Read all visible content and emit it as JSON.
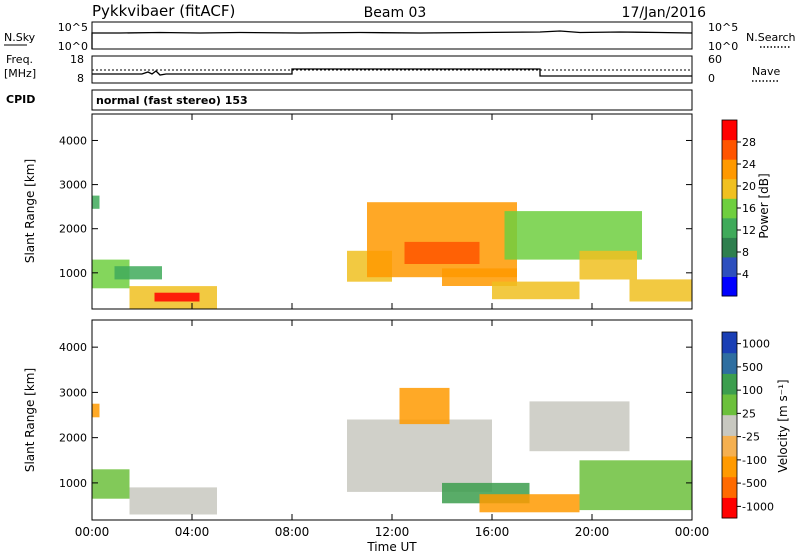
{
  "header": {
    "station": "Pykkvibaer (fitACF)",
    "beam": "Beam 03",
    "date": "17/Jan/2016"
  },
  "noise_panel": {
    "left_label": "N.Sky",
    "right_label": "N.Search",
    "left_ticks": [
      "10^5",
      "10^0"
    ],
    "right_ticks": [
      "10^5",
      "10^0"
    ],
    "right_legend_line": "dotted"
  },
  "freq_panel": {
    "left_label_1": "Freq.",
    "left_label_2": "[MHz]",
    "right_label": "Nave",
    "left_ticks": [
      "18",
      "8"
    ],
    "right_ticks": [
      "60",
      "0"
    ],
    "right_legend_line": "dotted"
  },
  "cpid": {
    "label": "CPID",
    "text": "normal (fast stereo) 153"
  },
  "colors": {
    "power_scale": [
      "#0000ff",
      "#2d4fbe",
      "#2e7f4e",
      "#3faa5a",
      "#6fcf3f",
      "#f0c020",
      "#ff9900",
      "#ff5500",
      "#ff0000"
    ],
    "velocity_scale": [
      "#ff0000",
      "#ff6a00",
      "#ff9a00",
      "#f5b050",
      "#c8c8c0",
      "#6cc03c",
      "#3c9e4e",
      "#2e6ea0",
      "#1a3fb5"
    ]
  },
  "chart_data": [
    {
      "type": "heatmap",
      "panel": "power",
      "ylabel": "Slant Range [km]",
      "ylim": [
        180,
        4600
      ],
      "y_ticks": [
        "1000",
        "2000",
        "3000",
        "4000"
      ],
      "x_ticks": [
        "00:00",
        "04:00",
        "08:00",
        "12:00",
        "16:00",
        "20:00",
        "00:00"
      ],
      "colorbar": {
        "label": "Power [dB]",
        "ticks": [
          "4",
          "8",
          "12",
          "16",
          "20",
          "24",
          "28"
        ]
      },
      "regions": [
        {
          "t0": 0.0,
          "t1": 1.5,
          "r0": 650,
          "r1": 1300,
          "level": 4
        },
        {
          "t0": 0.9,
          "t1": 2.8,
          "r0": 850,
          "r1": 1150,
          "level": 3
        },
        {
          "t0": 1.5,
          "t1": 5.0,
          "r0": 180,
          "r1": 700,
          "level": 5
        },
        {
          "t0": 2.5,
          "t1": 4.3,
          "r0": 350,
          "r1": 550,
          "level": 8
        },
        {
          "t0": 0.0,
          "t1": 0.3,
          "r0": 2450,
          "r1": 2750,
          "level": 3
        },
        {
          "t0": 10.2,
          "t1": 12.0,
          "r0": 800,
          "r1": 1500,
          "level": 5
        },
        {
          "t0": 11.0,
          "t1": 17.0,
          "r0": 900,
          "r1": 2600,
          "level": 6
        },
        {
          "t0": 12.5,
          "t1": 15.5,
          "r0": 1200,
          "r1": 1700,
          "level": 7
        },
        {
          "t0": 14.0,
          "t1": 17.0,
          "r0": 700,
          "r1": 1100,
          "level": 6
        },
        {
          "t0": 16.0,
          "t1": 19.5,
          "r0": 400,
          "r1": 800,
          "level": 5
        },
        {
          "t0": 16.5,
          "t1": 22.0,
          "r0": 1300,
          "r1": 2400,
          "level": 4
        },
        {
          "t0": 19.5,
          "t1": 21.8,
          "r0": 850,
          "r1": 1500,
          "level": 5
        },
        {
          "t0": 21.5,
          "t1": 24.0,
          "r0": 350,
          "r1": 850,
          "level": 5
        }
      ]
    },
    {
      "type": "heatmap",
      "panel": "velocity",
      "ylabel": "Slant Range [km]",
      "ylim": [
        180,
        4600
      ],
      "y_ticks": [
        "1000",
        "2000",
        "3000",
        "4000"
      ],
      "x_ticks": [
        "00:00",
        "04:00",
        "08:00",
        "12:00",
        "16:00",
        "20:00",
        "00:00"
      ],
      "xlabel": "Time UT",
      "colorbar": {
        "label": "Velocity [m s⁻¹]",
        "ticks": [
          "1000",
          "500",
          "100",
          "25",
          "-25",
          "-100",
          "-500",
          "-1000"
        ]
      },
      "regions": [
        {
          "t0": 0.0,
          "t1": 1.5,
          "r0": 650,
          "r1": 1300,
          "level": 5
        },
        {
          "t0": 1.5,
          "t1": 5.0,
          "r0": 300,
          "r1": 900,
          "level": 4
        },
        {
          "t0": 0.0,
          "t1": 0.3,
          "r0": 2450,
          "r1": 2750,
          "level": 2
        },
        {
          "t0": 10.2,
          "t1": 16.0,
          "r0": 800,
          "r1": 2400,
          "level": 4
        },
        {
          "t0": 12.3,
          "t1": 14.3,
          "r0": 2300,
          "r1": 3100,
          "level": 2
        },
        {
          "t0": 14.0,
          "t1": 17.5,
          "r0": 550,
          "r1": 1000,
          "level": 6
        },
        {
          "t0": 15.5,
          "t1": 19.5,
          "r0": 350,
          "r1": 750,
          "level": 2
        },
        {
          "t0": 17.5,
          "t1": 21.5,
          "r0": 1700,
          "r1": 2800,
          "level": 4
        },
        {
          "t0": 19.5,
          "t1": 24.0,
          "r0": 400,
          "r1": 1500,
          "level": 5
        }
      ]
    }
  ]
}
